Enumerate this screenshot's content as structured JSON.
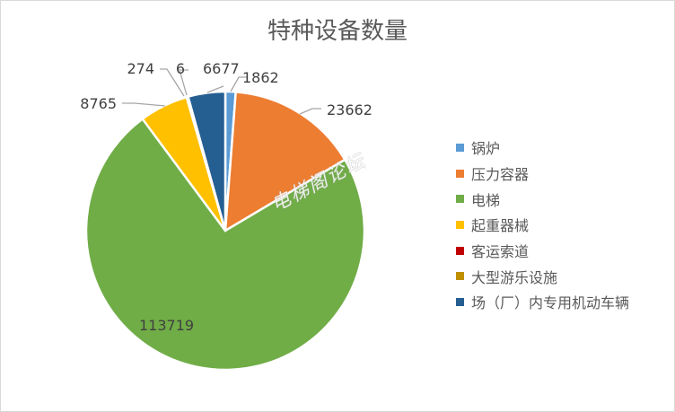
{
  "chart_data": {
    "type": "pie",
    "title": "特种设备数量",
    "legend_position": "right",
    "categories": [
      "锅炉",
      "压力容器",
      "电梯",
      "起重器械",
      "客运索道",
      "大型游乐设施",
      "场（厂）内专用机动车辆"
    ],
    "values": [
      1862,
      23662,
      113719,
      8765,
      6,
      274,
      6677
    ],
    "labels": [
      "1862",
      "23662",
      "113719",
      "8765",
      "6",
      "274",
      "6677"
    ],
    "colors": [
      "#5b9bd5",
      "#ed7d31",
      "#70ad47",
      "#ffc000",
      "#c00000",
      "#bf9000",
      "#255e91"
    ]
  },
  "watermark": {
    "text": "电梯阁论坛"
  }
}
